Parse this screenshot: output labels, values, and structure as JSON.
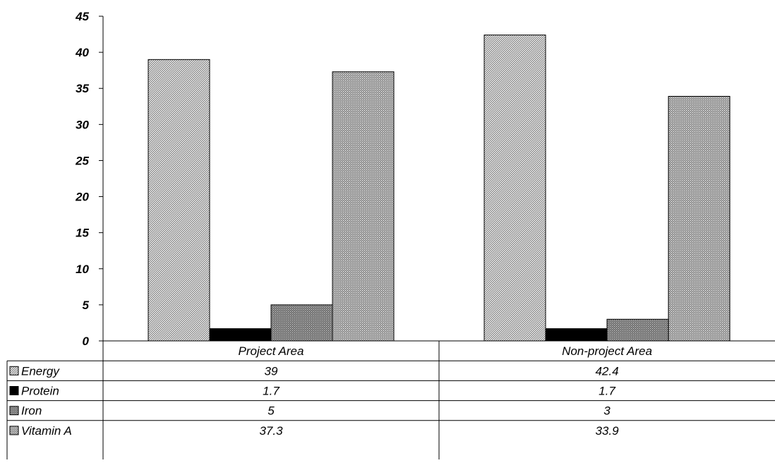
{
  "chart_data": {
    "type": "bar",
    "categories": [
      "Project Area",
      "Non-project Area"
    ],
    "series": [
      {
        "name": "Energy",
        "values": [
          39,
          42.4
        ],
        "value_labels": [
          "39",
          "42.4"
        ],
        "color": "#c8c8c8",
        "pattern": "diagonal-hatch"
      },
      {
        "name": "Protein",
        "values": [
          1.7,
          1.7
        ],
        "value_labels": [
          "1.7",
          "1.7"
        ],
        "color": "#000000",
        "pattern": "solid"
      },
      {
        "name": "Iron",
        "values": [
          5,
          3
        ],
        "value_labels": [
          "5",
          "3"
        ],
        "color": "#808080",
        "pattern": "dots-dark"
      },
      {
        "name": "Vitamin A",
        "values": [
          37.3,
          33.9
        ],
        "value_labels": [
          "37.3",
          "33.9"
        ],
        "color": "#a6a6a6",
        "pattern": "dots-light"
      }
    ],
    "title": "",
    "xlabel": "",
    "ylabel": "",
    "ylim": [
      0,
      45
    ],
    "yticks": [
      "0",
      "5",
      "10",
      "15",
      "20",
      "25",
      "30",
      "35",
      "40",
      "45"
    ],
    "grid": false,
    "legend": "data-table"
  }
}
